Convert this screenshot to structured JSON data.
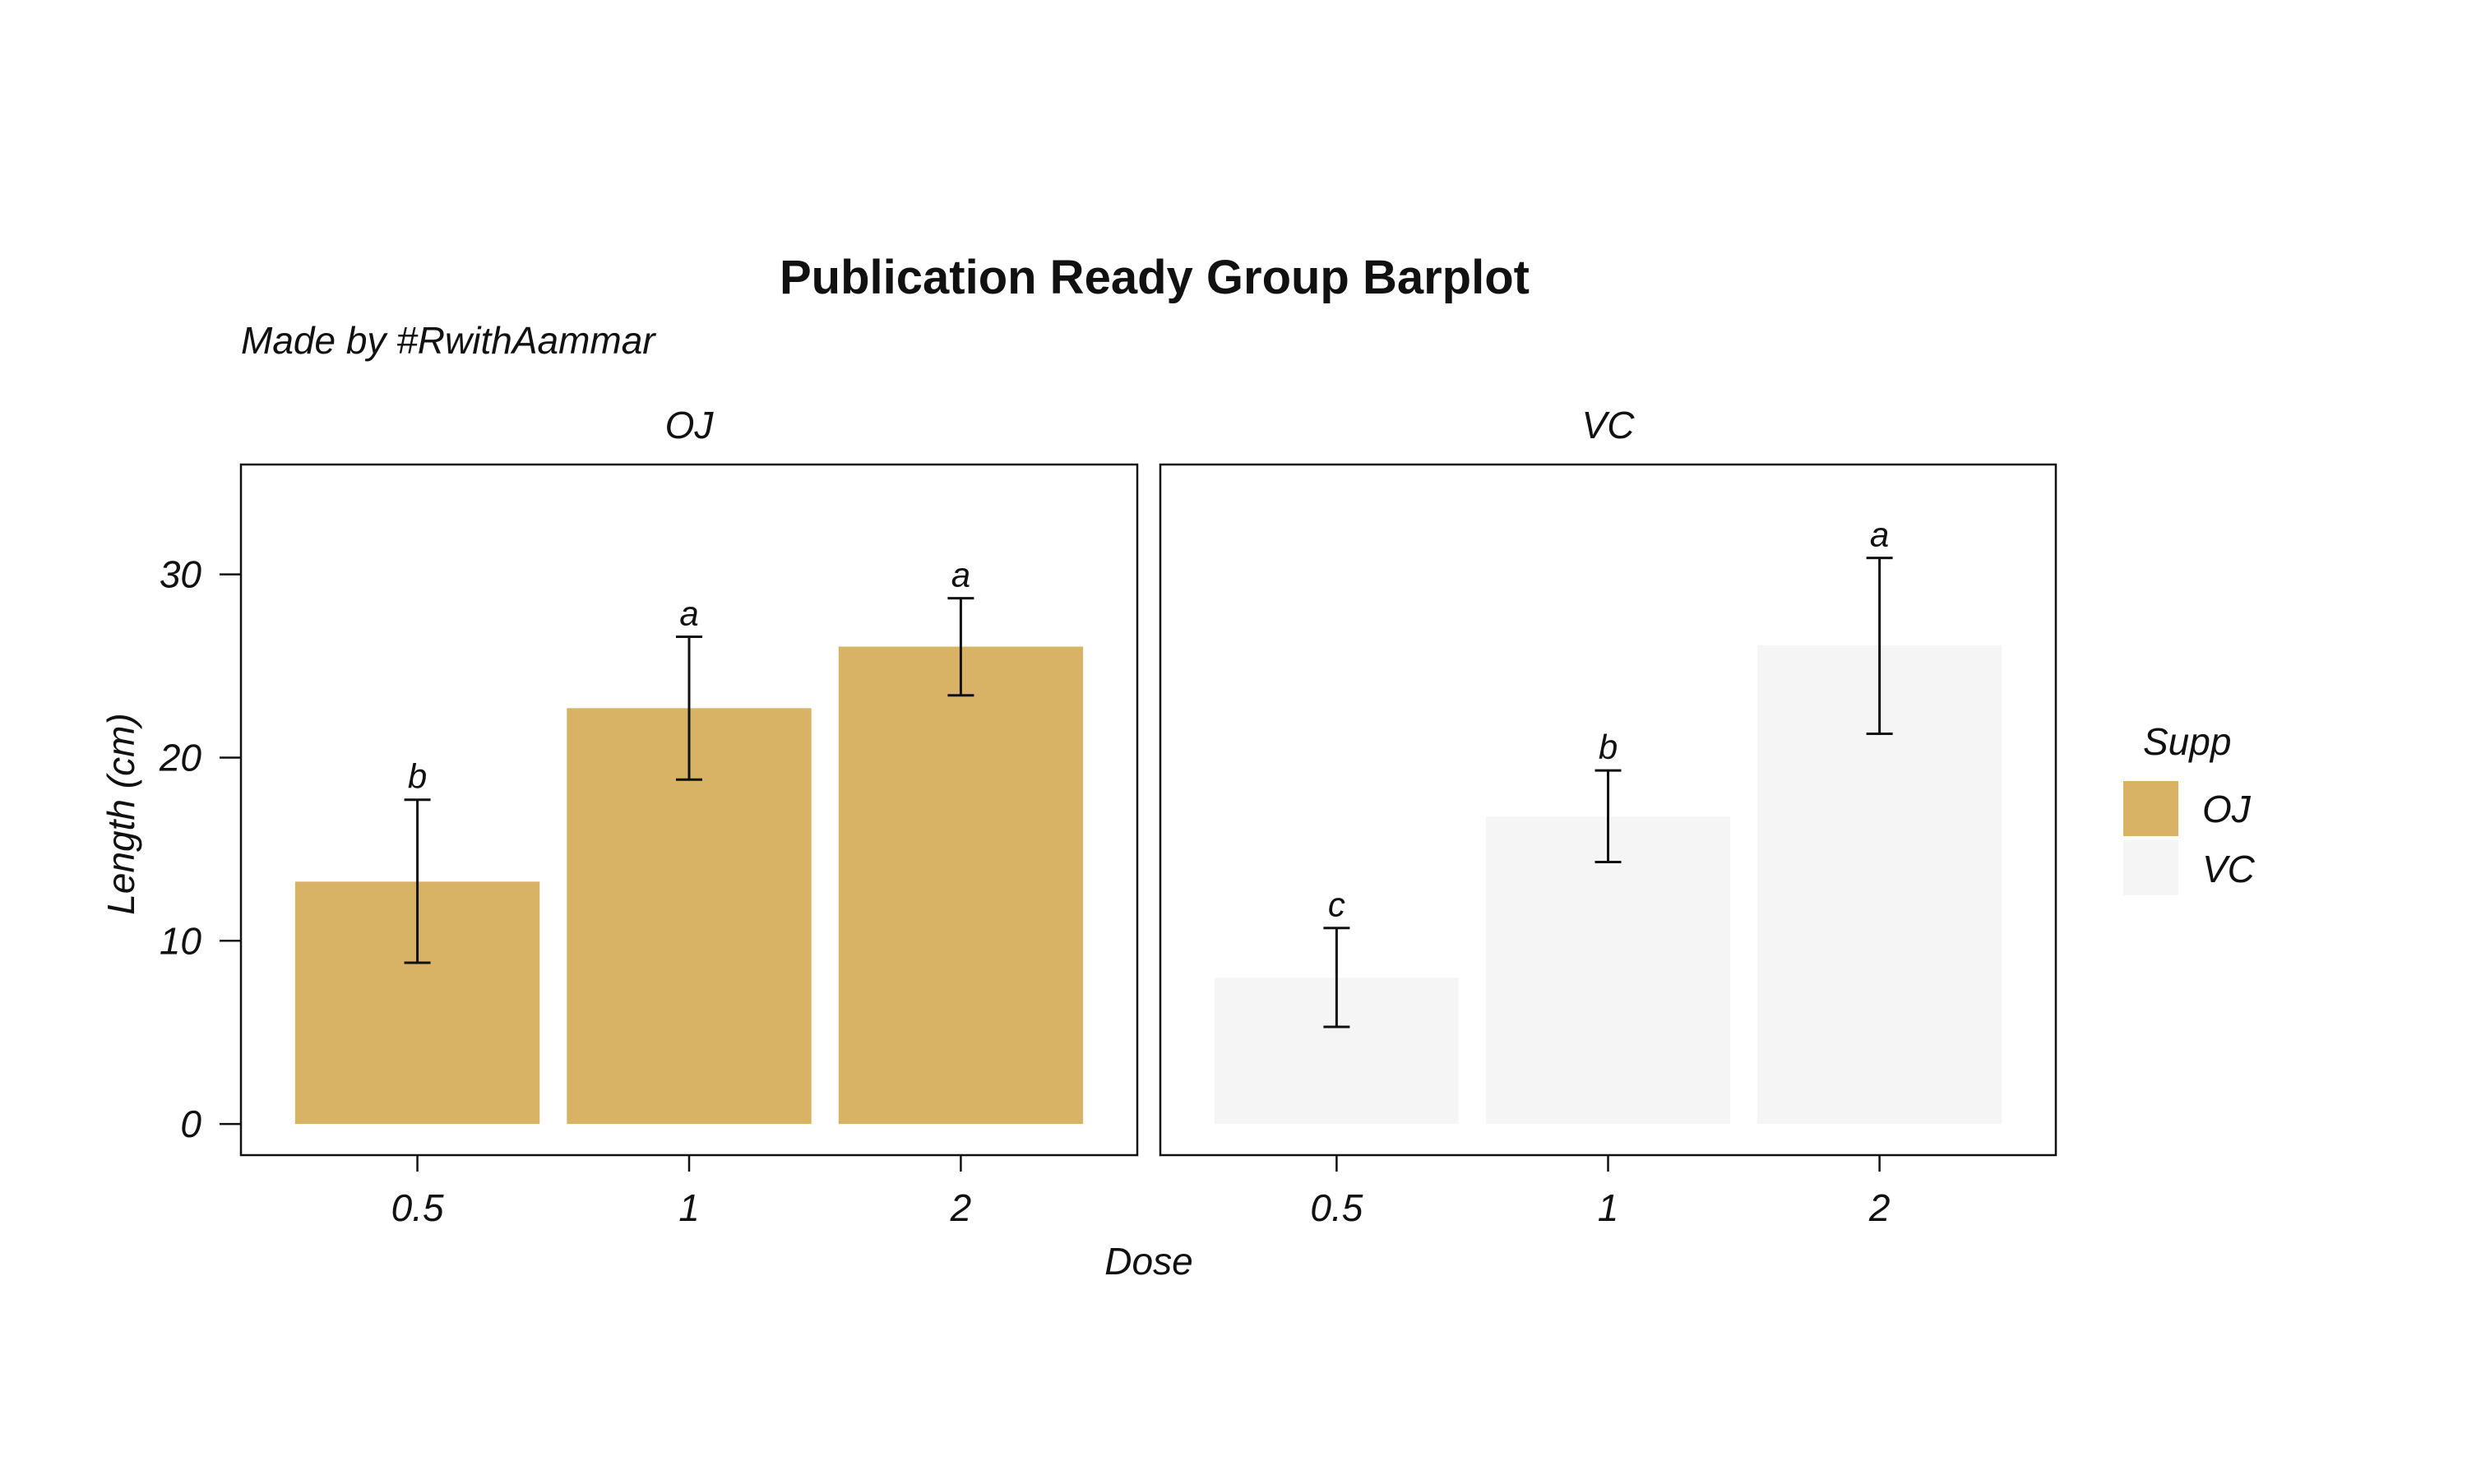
{
  "chart_data": {
    "type": "bar",
    "title": "Publication Ready Group Barplot",
    "subtitle": "Made by #RwithAammar",
    "xlabel": "Dose",
    "ylabel": "Length (cm)",
    "ylim": [
      -1.7,
      36
    ],
    "yticks": [
      0,
      10,
      20,
      30
    ],
    "grid": false,
    "legend": {
      "title": "Supp",
      "position": "right",
      "entries": [
        {
          "label": "OJ",
          "color": "#D8B365"
        },
        {
          "label": "VC",
          "color": "#F5F5F5"
        }
      ]
    },
    "categories": [
      "0.5",
      "1",
      "2"
    ],
    "facets": [
      {
        "name": "OJ",
        "color": "#D8B365",
        "values": [
          13.23,
          22.7,
          26.06
        ],
        "error_low": [
          8.8,
          18.8,
          23.4
        ],
        "error_high": [
          17.7,
          26.6,
          28.7
        ],
        "labels": [
          "b",
          "a",
          "a"
        ]
      },
      {
        "name": "VC",
        "color": "#F5F5F5",
        "values": [
          7.98,
          16.77,
          26.14
        ],
        "error_low": [
          5.3,
          14.3,
          21.3
        ],
        "error_high": [
          10.7,
          19.3,
          30.9
        ],
        "labels": [
          "c",
          "b",
          "a"
        ]
      }
    ]
  }
}
